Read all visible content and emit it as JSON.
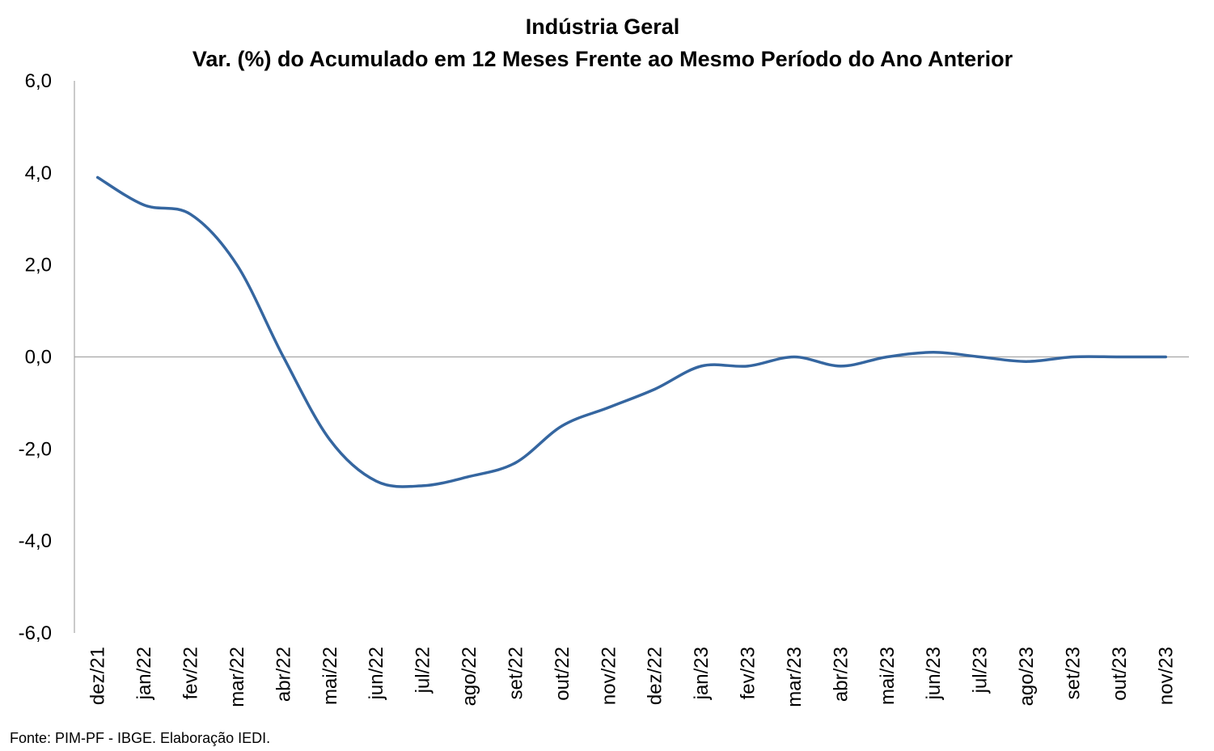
{
  "chart_data": {
    "type": "line",
    "title": "Indústria Geral",
    "subtitle": "Var. (%) do Acumulado em 12 Meses Frente ao Mesmo Período do Ano Anterior",
    "xlabel": "",
    "ylabel": "",
    "ylim": [
      -6,
      6
    ],
    "y_ticks": [
      "6,0",
      "4,0",
      "2,0",
      "0,0",
      "-2,0",
      "-4,0",
      "-6,0"
    ],
    "y_tick_values": [
      6,
      4,
      2,
      0,
      -2,
      -4,
      -6
    ],
    "categories": [
      "dez/21",
      "jan/22",
      "fev/22",
      "mar/22",
      "abr/22",
      "mai/22",
      "jun/22",
      "jul/22",
      "ago/22",
      "set/22",
      "out/22",
      "nov/22",
      "dez/22",
      "jan/23",
      "fev/23",
      "mar/23",
      "abr/23",
      "mai/23",
      "jun/23",
      "jul/23",
      "ago/23",
      "set/23",
      "out/23",
      "nov/23"
    ],
    "series": [
      {
        "values": [
          3.9,
          3.3,
          3.1,
          2.0,
          0.0,
          -1.8,
          -2.7,
          -2.8,
          -2.6,
          -2.3,
          -1.5,
          -1.1,
          -0.7,
          -0.2,
          -0.2,
          0.0,
          -0.2,
          0.0,
          0.1,
          0.0,
          -0.1,
          0.0,
          0.0,
          0.0
        ]
      }
    ],
    "grid": false,
    "legend": "none",
    "zero_line": true,
    "line_color": "#3566A0",
    "axis_color": "#A6A6A6"
  },
  "source": "Fonte: PIM-PF - IBGE. Elaboração IEDI."
}
